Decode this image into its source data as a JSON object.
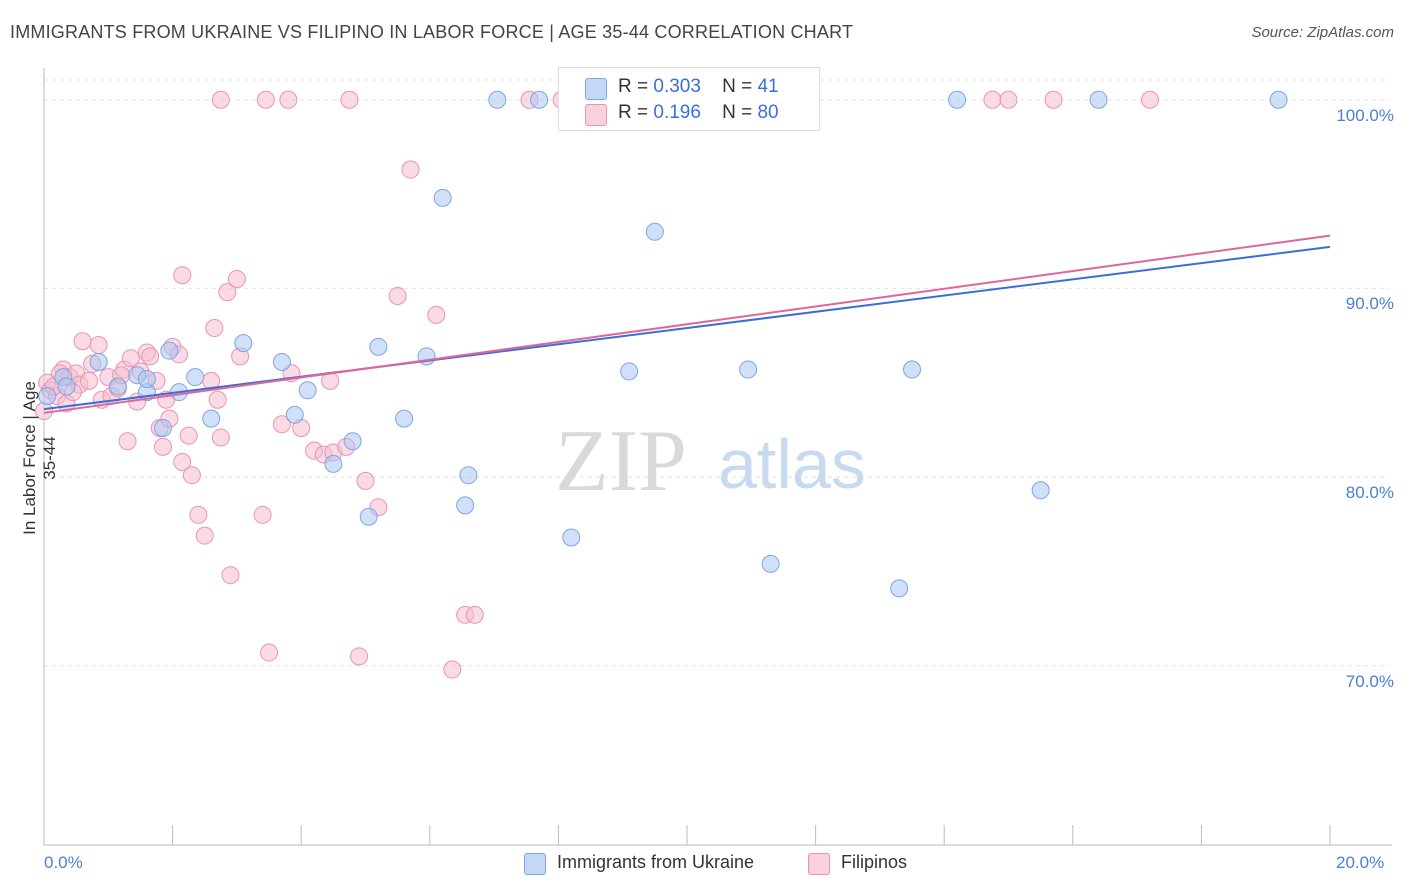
{
  "header": {
    "title": "IMMIGRANTS FROM UKRAINE VS FILIPINO IN LABOR FORCE | AGE 35-44 CORRELATION CHART",
    "source": "Source: ZipAtlas.com"
  },
  "watermark": {
    "part1": "ZIP",
    "part2": "atlas"
  },
  "legend_top": {
    "rows": [
      {
        "r_label": "R =",
        "r_value": "0.303",
        "n_label": "N =",
        "n_value": "41"
      },
      {
        "r_label": "R =",
        "r_value": "0.196",
        "n_label": "N =",
        "n_value": "80"
      }
    ]
  },
  "chart_data": {
    "type": "scatter",
    "title": "IMMIGRANTS FROM UKRAINE VS FILIPINO IN LABOR FORCE | AGE 35-44 CORRELATION CHART",
    "xlabel": "",
    "ylabel": "In Labor Force | Age 35-44",
    "xlim": [
      0,
      20
    ],
    "ylim": [
      60.5,
      102
    ],
    "x_tick_labels": [
      "0.0%",
      "20.0%"
    ],
    "y_ticks": [
      70,
      80,
      90,
      100
    ],
    "y_tick_labels": [
      "70.0%",
      "80.0%",
      "90.0%",
      "100.0%"
    ],
    "grid": true,
    "legend_placement": "bottom",
    "series": [
      {
        "name": "Immigrants from Ukraine",
        "color": "#a9c7f2",
        "stroke": "#7ea6e0",
        "line_color": "#3a6fd8",
        "trend": {
          "x": [
            0,
            20
          ],
          "y": [
            83.6,
            92.2
          ]
        },
        "points": [
          [
            0.05,
            84.3
          ],
          [
            0.3,
            85.3
          ],
          [
            0.35,
            84.8
          ],
          [
            0.85,
            86.1
          ],
          [
            1.15,
            84.8
          ],
          [
            1.45,
            85.4
          ],
          [
            1.6,
            84.5
          ],
          [
            1.85,
            82.6
          ],
          [
            1.95,
            86.7
          ],
          [
            2.1,
            84.5
          ],
          [
            2.35,
            85.3
          ],
          [
            2.6,
            83.1
          ],
          [
            3.1,
            87.1
          ],
          [
            3.7,
            86.1
          ],
          [
            3.9,
            83.3
          ],
          [
            4.1,
            84.6
          ],
          [
            4.5,
            80.7
          ],
          [
            4.8,
            81.9
          ],
          [
            5.05,
            77.9
          ],
          [
            5.2,
            86.9
          ],
          [
            5.6,
            83.1
          ],
          [
            5.95,
            86.4
          ],
          [
            6.2,
            94.8
          ],
          [
            6.55,
            78.5
          ],
          [
            6.6,
            80.1
          ],
          [
            7.05,
            100.0
          ],
          [
            7.7,
            100.0
          ],
          [
            8.2,
            76.8
          ],
          [
            8.4,
            100.0
          ],
          [
            9.1,
            85.6
          ],
          [
            9.5,
            93.0
          ],
          [
            10.1,
            100.0
          ],
          [
            10.95,
            85.7
          ],
          [
            11.3,
            75.4
          ],
          [
            13.3,
            74.1
          ],
          [
            13.5,
            85.7
          ],
          [
            14.2,
            100.0
          ],
          [
            15.5,
            79.3
          ],
          [
            16.4,
            100.0
          ],
          [
            19.2,
            100.0
          ],
          [
            1.6,
            85.2
          ]
        ]
      },
      {
        "name": "Filipinos",
        "color": "#f6bdd0",
        "stroke": "#ea93b2",
        "line_color": "#e0669a",
        "trend": {
          "x": [
            0,
            20
          ],
          "y": [
            83.4,
            92.8
          ]
        },
        "points": [
          [
            0.0,
            83.5
          ],
          [
            0.05,
            85.0
          ],
          [
            0.1,
            84.6
          ],
          [
            0.2,
            84.3
          ],
          [
            0.3,
            85.7
          ],
          [
            0.4,
            85.3
          ],
          [
            0.5,
            85.5
          ],
          [
            0.55,
            84.9
          ],
          [
            0.6,
            87.2
          ],
          [
            0.7,
            85.1
          ],
          [
            0.75,
            86.0
          ],
          [
            0.85,
            87.0
          ],
          [
            0.9,
            84.1
          ],
          [
            1.0,
            85.3
          ],
          [
            1.05,
            84.3
          ],
          [
            1.15,
            84.7
          ],
          [
            1.25,
            85.7
          ],
          [
            1.35,
            86.3
          ],
          [
            1.45,
            84.0
          ],
          [
            1.5,
            85.6
          ],
          [
            1.6,
            86.6
          ],
          [
            1.65,
            86.4
          ],
          [
            1.75,
            85.1
          ],
          [
            1.8,
            82.6
          ],
          [
            1.85,
            81.6
          ],
          [
            1.9,
            84.1
          ],
          [
            2.0,
            86.9
          ],
          [
            2.1,
            86.5
          ],
          [
            2.15,
            80.8
          ],
          [
            2.25,
            82.2
          ],
          [
            2.3,
            80.1
          ],
          [
            2.4,
            78.0
          ],
          [
            2.5,
            76.9
          ],
          [
            2.6,
            85.1
          ],
          [
            2.65,
            87.9
          ],
          [
            2.7,
            84.1
          ],
          [
            2.75,
            82.1
          ],
          [
            2.85,
            89.8
          ],
          [
            2.9,
            74.8
          ],
          [
            3.0,
            90.5
          ],
          [
            3.05,
            86.4
          ],
          [
            3.4,
            78.0
          ],
          [
            3.5,
            70.7
          ],
          [
            3.7,
            82.8
          ],
          [
            3.85,
            85.5
          ],
          [
            4.0,
            82.6
          ],
          [
            4.2,
            81.4
          ],
          [
            4.35,
            81.2
          ],
          [
            4.45,
            85.1
          ],
          [
            4.5,
            81.3
          ],
          [
            4.7,
            81.6
          ],
          [
            4.75,
            100.0
          ],
          [
            4.9,
            70.5
          ],
          [
            5.0,
            79.8
          ],
          [
            5.2,
            78.4
          ],
          [
            5.5,
            89.6
          ],
          [
            5.7,
            96.3
          ],
          [
            6.1,
            88.6
          ],
          [
            6.35,
            69.8
          ],
          [
            6.55,
            72.7
          ],
          [
            6.7,
            72.7
          ],
          [
            7.55,
            100.0
          ],
          [
            8.05,
            100.0
          ],
          [
            9.5,
            100.0
          ],
          [
            11.45,
            100.0
          ],
          [
            14.75,
            100.0
          ],
          [
            15.0,
            100.0
          ],
          [
            15.7,
            100.0
          ],
          [
            17.2,
            100.0
          ],
          [
            3.45,
            100.0
          ],
          [
            0.35,
            83.9
          ],
          [
            2.75,
            100.0
          ],
          [
            1.3,
            81.9
          ],
          [
            2.15,
            90.7
          ],
          [
            0.15,
            84.8
          ],
          [
            1.2,
            85.4
          ],
          [
            0.25,
            85.5
          ],
          [
            1.95,
            83.1
          ],
          [
            3.8,
            100.0
          ],
          [
            0.45,
            84.5
          ]
        ]
      }
    ]
  },
  "legend_bottom": {
    "items": [
      {
        "label": "Immigrants from Ukraine",
        "color": "#a9c7f2"
      },
      {
        "label": "Filipinos",
        "color": "#f6bdd0"
      }
    ]
  }
}
